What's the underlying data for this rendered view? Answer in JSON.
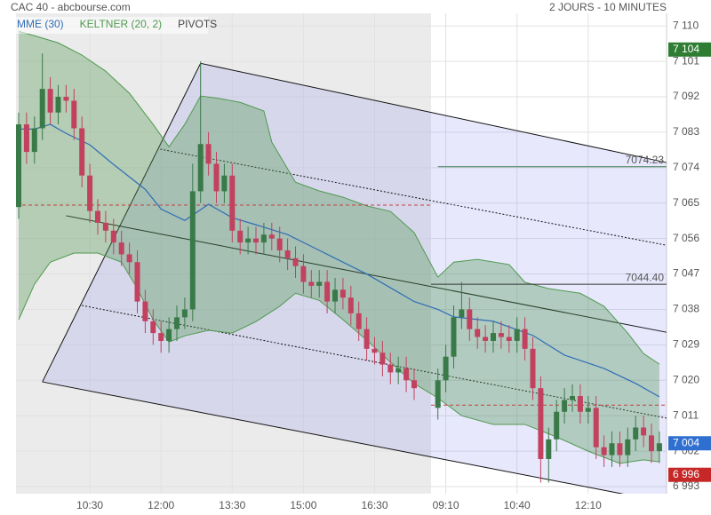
{
  "chart_data": {
    "type": "candlestick",
    "title": "CAC 40 - abcbourse.com",
    "subtitle": "2 JOURS - 10 MINUTES",
    "categories": [
      null,
      null,
      null,
      null,
      null,
      null,
      null,
      null,
      null,
      "10:30",
      null,
      null,
      null,
      null,
      null,
      null,
      null,
      null,
      "12:00",
      null,
      null,
      null,
      null,
      null,
      null,
      null,
      null,
      "13:30",
      null,
      null,
      null,
      null,
      null,
      null,
      null,
      null,
      "15:00",
      null,
      null,
      null,
      null,
      null,
      null,
      null,
      null,
      "16:30",
      null,
      null,
      null,
      null,
      null,
      null,
      "09:10",
      null,
      null,
      null,
      null,
      null,
      null,
      null,
      null,
      "10:40",
      null,
      null,
      null,
      null,
      null,
      null,
      null,
      null,
      "12:10",
      null,
      null,
      null,
      null,
      null,
      null,
      null,
      null,
      null
    ],
    "open": [
      7064,
      7085,
      7078,
      7084,
      7094,
      7088,
      7092,
      7091,
      7084,
      7072,
      7063,
      7060,
      7058,
      7055,
      7052,
      7050,
      7040,
      7035,
      7032,
      7030,
      7033,
      7036,
      7038,
      7068,
      7080,
      7075,
      7068,
      7072,
      7058,
      7055,
      7056,
      7055,
      7057,
      7056,
      7053,
      7051,
      7049,
      7045,
      7044,
      7045,
      7040,
      7043,
      7041,
      7037,
      7033,
      7028,
      7027,
      7024,
      7022,
      7023,
      7020,
      7013,
      7020,
      7026,
      7036,
      7038,
      7033,
      7031,
      7030,
      7032,
      7031,
      7030,
      7033,
      7028,
      7018,
      7000,
      7005,
      7012,
      7015,
      7016,
      7012,
      7013,
      7003,
      7001,
      7004,
      7001,
      7005,
      7008,
      7006,
      7002
    ],
    "high": [
      7088,
      7088,
      7087,
      7103,
      7097,
      7095,
      7095,
      7094,
      7087,
      7075,
      7066,
      7063,
      7061,
      7058,
      7055,
      7053,
      7043,
      7038,
      7035,
      7036,
      7039,
      7041,
      7075,
      7101,
      7083,
      7078,
      7075,
      7075,
      7061,
      7059,
      7059,
      7060,
      7060,
      7059,
      7056,
      7054,
      7052,
      7048,
      7048,
      7048,
      7046,
      7046,
      7044,
      7040,
      7036,
      7031,
      7030,
      7027,
      7026,
      7026,
      7023,
      7023,
      7029,
      7039,
      7045,
      7041,
      7036,
      7034,
      7035,
      7035,
      7034,
      7036,
      7036,
      7031,
      7021,
      7008,
      7015,
      7018,
      7019,
      7019,
      7016,
      7016,
      7006,
      7007,
      7007,
      7008,
      7011,
      7011,
      7009,
      7007
    ],
    "low": [
      7061,
      7075,
      7075,
      7081,
      7085,
      7085,
      7088,
      7081,
      7069,
      7060,
      7057,
      7055,
      7052,
      7049,
      7047,
      7037,
      7032,
      7029,
      7027,
      7027,
      7030,
      7033,
      7035,
      7065,
      7072,
      7065,
      7065,
      7055,
      7052,
      7052,
      7052,
      7052,
      7053,
      7050,
      7048,
      7046,
      7042,
      7041,
      7041,
      7037,
      7037,
      7038,
      7034,
      7030,
      7025,
      7024,
      7021,
      7019,
      7019,
      7017,
      7015,
      7010,
      7017,
      7023,
      7033,
      7030,
      7028,
      7027,
      7027,
      7028,
      7027,
      7027,
      7025,
      7015,
      6994,
      6994,
      7002,
      7009,
      7012,
      7009,
      7009,
      7000,
      6998,
      6998,
      6998,
      6998,
      7002,
      7003,
      6999,
      6999
    ],
    "close": [
      7085,
      7078,
      7084,
      7094,
      7088,
      7092,
      7091,
      7084,
      7072,
      7063,
      7060,
      7058,
      7055,
      7052,
      7050,
      7040,
      7035,
      7032,
      7030,
      7033,
      7036,
      7038,
      7068,
      7080,
      7075,
      7068,
      7072,
      7058,
      7055,
      7056,
      7055,
      7057,
      7056,
      7053,
      7051,
      7049,
      7045,
      7044,
      7045,
      7040,
      7043,
      7041,
      7037,
      7033,
      7028,
      7027,
      7024,
      7022,
      7023,
      7020,
      7018,
      7020,
      7026,
      7036,
      7038,
      7033,
      7031,
      7030,
      7032,
      7031,
      7030,
      7033,
      7028,
      7018,
      7000,
      7005,
      7012,
      7015,
      7016,
      7012,
      7013,
      7003,
      7001,
      7004,
      7001,
      7005,
      7008,
      7006,
      7002,
      7004
    ],
    "up_color": "#3a7a48",
    "down_color": "#c2415e",
    "ylim": [
      6991.2,
      7113.2
    ],
    "yticks": [
      {
        "value": 6993,
        "label": "6 993"
      },
      {
        "value": 7002,
        "label": "7 002"
      },
      {
        "value": 7011,
        "label": "7 011"
      },
      {
        "value": 7020,
        "label": "7 020"
      },
      {
        "value": 7029,
        "label": "7 029"
      },
      {
        "value": 7038,
        "label": "7 038"
      },
      {
        "value": 7047,
        "label": "7 047"
      },
      {
        "value": 7056,
        "label": "7 056"
      },
      {
        "value": 7065,
        "label": "7 065"
      },
      {
        "value": 7074,
        "label": "7 074"
      },
      {
        "value": 7083,
        "label": "7 083"
      },
      {
        "value": 7092,
        "label": "7 092"
      },
      {
        "value": 7101,
        "label": "7 101"
      },
      {
        "value": 7110,
        "label": "7 110"
      }
    ],
    "grid": true,
    "series": [
      {
        "name": "MME (30)",
        "color": "#2f6db5",
        "x": [
          0,
          2,
          4,
          6,
          9,
          12,
          16,
          18,
          21,
          24,
          27,
          30,
          34,
          37,
          40,
          44,
          47,
          50,
          51,
          53,
          58,
          63,
          67,
          72,
          76,
          79
        ],
        "values": [
          7083.8,
          7083.8,
          7085,
          7082.7,
          7079.8,
          7074.8,
          7068.5,
          7063.5,
          7060.6,
          7064.7,
          7061.3,
          7059.5,
          7057,
          7054,
          7051,
          7047,
          7043.5,
          7040,
          7038,
          7036.1,
          7035,
          7031.4,
          7026.4,
          7023,
          7019.2,
          7015.8
        ]
      },
      {
        "name": "KELTNER (20, 2)",
        "color": "#4f9a4f",
        "upper": {
          "x": [
            0,
            2,
            5,
            8,
            11,
            14,
            17,
            19,
            21,
            23,
            25,
            28,
            31,
            32,
            35,
            38,
            41,
            44,
            47,
            50,
            51,
            53,
            56,
            60,
            62,
            65,
            69,
            72,
            75,
            77,
            79
          ],
          "values": [
            7108.6,
            7107.5,
            7105.7,
            7102.6,
            7098.5,
            7092.9,
            7085,
            7079.3,
            7085,
            7092.2,
            7091.7,
            7090.6,
            7088.4,
            7080.5,
            7070.3,
            7068.1,
            7066.5,
            7064.3,
            7062.9,
            7057.5,
            7046.2,
            7050,
            7050.7,
            7049.4,
            7044.9,
            7043.3,
            7042.1,
            7038.8,
            7032,
            7026.8,
            7024.1
          ]
        },
        "lower": {
          "x": [
            0,
            2,
            4,
            7,
            10,
            13,
            15,
            17,
            19,
            21,
            24,
            27,
            30,
            33,
            35,
            38,
            41,
            44,
            47,
            50,
            51,
            54,
            58,
            62,
            66,
            70,
            74,
            77,
            79
          ],
          "values": [
            7035.4,
            7044.4,
            7050,
            7052.3,
            7052.3,
            7050,
            7043.3,
            7035.4,
            7029.7,
            7031.3,
            7032.7,
            7032,
            7034.9,
            7038.8,
            7042.1,
            7040.3,
            7035.4,
            7030.2,
            7024.6,
            7019.2,
            7015.5,
            7011,
            7008.8,
            7008.8,
            7005.6,
            7002,
            6998.9,
            6999.8,
            6999.3
          ]
        }
      },
      {
        "name": "PIVOTS",
        "color": "#444444",
        "levels": [
          7074.23,
          {
            "value": 7044.4,
            "label": "7044.40"
          }
        ],
        "level_colors": [
          "#3f7f4f",
          "#333333"
        ]
      }
    ],
    "reference_lines": {
      "color": "#c04040",
      "values": [
        7064.5,
        7013.7
      ]
    },
    "channel": {
      "color": "#111111",
      "fill": "rgba(110,110,240,0.16)",
      "upper": [
        [
          23,
          7100.5
        ],
        [
          79.9,
          7075.3
        ]
      ],
      "middle": [
        [
          6,
          7061.8
        ],
        [
          79.9,
          7032.2
        ]
      ],
      "lower": [
        [
          3,
          7019.6
        ],
        [
          79.9,
          6989
        ]
      ],
      "inner_upper": [
        [
          17.9,
          7078.7
        ],
        [
          79.9,
          7054.3
        ]
      ],
      "inner_lower": [
        [
          8,
          7039
        ],
        [
          79.9,
          7010.4
        ]
      ]
    },
    "price_tags": [
      {
        "value": 7104,
        "label": "7 104",
        "color": "#2e7d32"
      },
      {
        "value": 7004,
        "label": "7 004",
        "color": "#2f6fd0"
      },
      {
        "value": 6996,
        "label": "6 996",
        "color": "#c62828"
      }
    ]
  }
}
